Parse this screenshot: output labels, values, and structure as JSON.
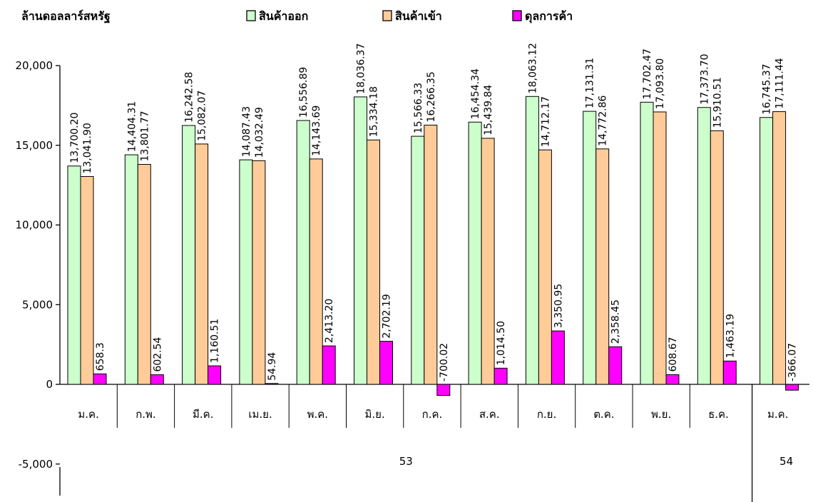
{
  "chart_data": {
    "type": "bar",
    "ylabel": "ล้านดอลลาร์สหรัฐ",
    "ylim": [
      -5000,
      20000
    ],
    "yticks": [
      20000,
      15000,
      10000,
      5000,
      0,
      -5000
    ],
    "ytick_labels": [
      "20,000",
      "15,000",
      "10,000",
      "5,000",
      "0",
      "-5,000"
    ],
    "categories": [
      "ม.ค.",
      "ก.พ.",
      "มี.ค.",
      "เม.ย.",
      "พ.ค.",
      "มิ.ย.",
      "ก.ค.",
      "ส.ค.",
      "ก.ย.",
      "ต.ค.",
      "พ.ย.",
      "ธ.ค.",
      "ม.ค."
    ],
    "groups": [
      {
        "label": "53",
        "count": 12
      },
      {
        "label": "54",
        "count": 1
      }
    ],
    "legend_position": "top",
    "series": [
      {
        "name": "สินค้าออก",
        "color": "#ccffcc",
        "values": [
          13700.2,
          14404.31,
          16242.58,
          14087.43,
          16556.89,
          18036.37,
          15566.33,
          16454.34,
          18063.12,
          17131.31,
          17702.47,
          17373.7,
          16745.37
        ],
        "labels": [
          "13,700.20",
          "14,404.31",
          "16,242.58",
          "14,087.43",
          "16,556.89",
          "18,036.37",
          "15,566.33",
          "16,454.34",
          "18,063.12",
          "17,131.31",
          "17,702.47",
          "17,373.70",
          "16,745.37"
        ]
      },
      {
        "name": "สินค้าเข้า",
        "color": "#ffcc99",
        "values": [
          13041.9,
          13801.77,
          15082.07,
          14032.49,
          14143.69,
          15334.18,
          16266.35,
          15439.84,
          14712.17,
          14772.86,
          17093.8,
          15910.51,
          17111.44
        ],
        "labels": [
          "13,041.90",
          "13,801.77",
          "15,082.07",
          "14,032.49",
          "14,143.69",
          "15,334.18",
          "16,266.35",
          "15,439.84",
          "14,712.17",
          "14,772.86",
          "17,093.80",
          "15,910.51",
          "17,111.44"
        ]
      },
      {
        "name": "ดุลการค้า",
        "color": "#ff00ff",
        "values": [
          658.3,
          602.54,
          1160.51,
          54.94,
          2413.2,
          2702.19,
          -700.02,
          1014.5,
          3350.95,
          2358.45,
          608.67,
          1463.19,
          -366.07
        ],
        "labels": [
          "658.3",
          "602.54",
          "1,160.51",
          "54.94",
          "2,413.20",
          "2,702.19",
          "-700.02",
          "1,014.50",
          "3,350.95",
          "2,358.45",
          "608.67",
          "1,463.19",
          "-366.07"
        ]
      }
    ]
  }
}
